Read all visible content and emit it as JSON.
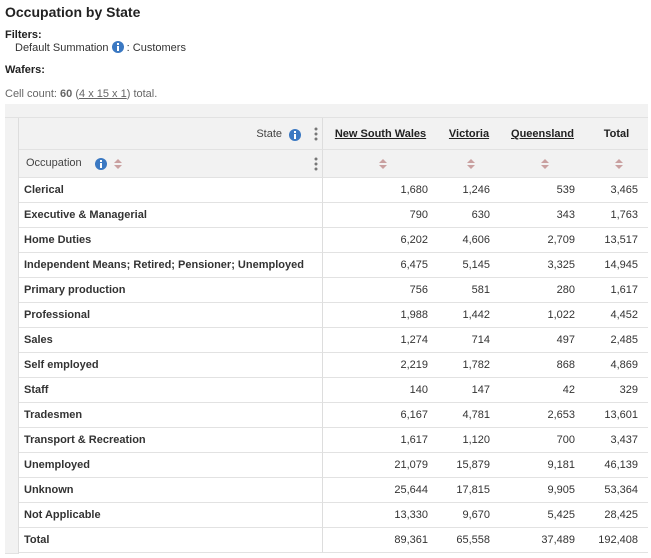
{
  "header": {
    "title": "Occupation by State"
  },
  "filters": {
    "label": "Filters:",
    "name": "Default Summation",
    "value": ": Customers"
  },
  "wafers": {
    "label": "Wafers:"
  },
  "cell_count": {
    "prefix": "Cell count:",
    "count": "60",
    "open": "(",
    "dims": "4 x 15 x 1",
    "suffix": ") total."
  },
  "table": {
    "column_dimension": "State",
    "row_dimension": "Occupation",
    "columns": [
      "New South Wales",
      "Victoria",
      "Queensland",
      "Total"
    ],
    "rows": [
      {
        "label": "Clerical",
        "values": [
          "1,680",
          "1,246",
          "539",
          "3,465"
        ]
      },
      {
        "label": "Executive & Managerial",
        "values": [
          "790",
          "630",
          "343",
          "1,763"
        ]
      },
      {
        "label": "Home Duties",
        "values": [
          "6,202",
          "4,606",
          "2,709",
          "13,517"
        ]
      },
      {
        "label": "Independent Means; Retired; Pensioner; Unemployed",
        "values": [
          "6,475",
          "5,145",
          "3,325",
          "14,945"
        ]
      },
      {
        "label": "Primary production",
        "values": [
          "756",
          "581",
          "280",
          "1,617"
        ]
      },
      {
        "label": "Professional",
        "values": [
          "1,988",
          "1,442",
          "1,022",
          "4,452"
        ]
      },
      {
        "label": "Sales",
        "values": [
          "1,274",
          "714",
          "497",
          "2,485"
        ]
      },
      {
        "label": "Self employed",
        "values": [
          "2,219",
          "1,782",
          "868",
          "4,869"
        ]
      },
      {
        "label": "Staff",
        "values": [
          "140",
          "147",
          "42",
          "329"
        ]
      },
      {
        "label": "Tradesmen",
        "values": [
          "6,167",
          "4,781",
          "2,653",
          "13,601"
        ]
      },
      {
        "label": "Transport & Recreation",
        "values": [
          "1,617",
          "1,120",
          "700",
          "3,437"
        ]
      },
      {
        "label": "Unemployed",
        "values": [
          "21,079",
          "15,879",
          "9,181",
          "46,139"
        ]
      },
      {
        "label": "Unknown",
        "values": [
          "25,644",
          "17,815",
          "9,905",
          "53,364"
        ]
      },
      {
        "label": "Not Applicable",
        "values": [
          "13,330",
          "9,670",
          "5,425",
          "28,425"
        ]
      },
      {
        "label": "Total",
        "values": [
          "89,361",
          "65,558",
          "37,489",
          "192,408"
        ]
      }
    ]
  }
}
